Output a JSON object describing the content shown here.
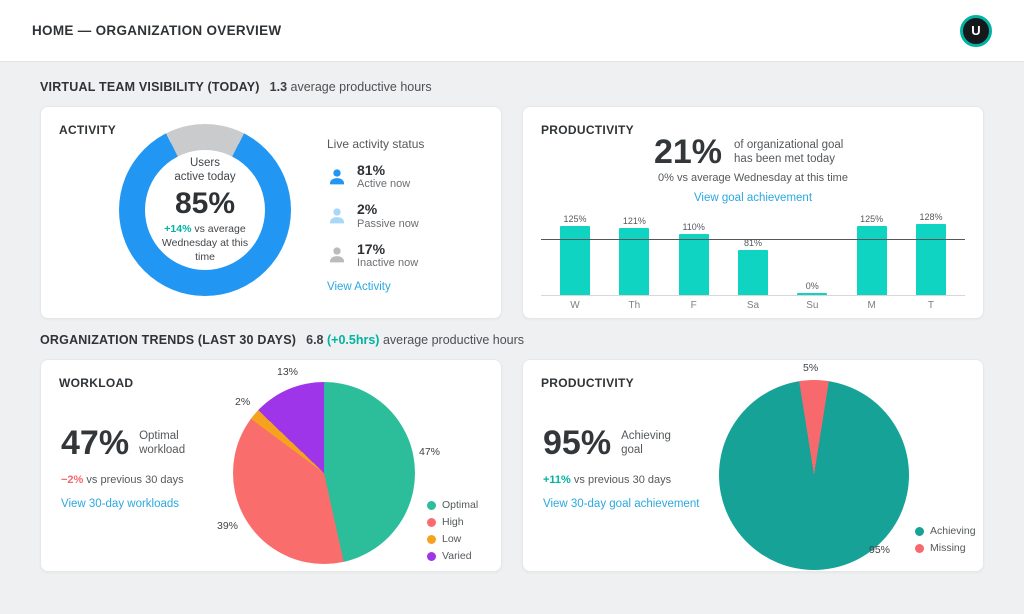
{
  "header": {
    "title": "HOME — ORGANIZATION OVERVIEW",
    "avatar_initial": "U"
  },
  "sections": {
    "today": {
      "title": "VIRTUAL TEAM VISIBILITY (TODAY)",
      "value": "1.3",
      "suffix": "average productive hours"
    },
    "trends": {
      "title": "ORGANIZATION TRENDS (LAST 30 DAYS)",
      "value": "6.8",
      "highlight": "(+0.5hrs)",
      "suffix": "average productive hours"
    }
  },
  "activity_card": {
    "title": "ACTIVITY",
    "center_label_line1": "Users",
    "center_label_line2": "active today",
    "center_value": "85%",
    "center_delta": "+14%",
    "center_delta_suffix": "vs average Wednesday at this time",
    "status_title": "Live activity status",
    "statuses": [
      {
        "value": "81%",
        "label": "Active now",
        "color": "#2196f3"
      },
      {
        "value": "2%",
        "label": "Passive now",
        "color": "#a9d7f8"
      },
      {
        "value": "17%",
        "label": "Inactive now",
        "color": "#b9bcbe"
      }
    ],
    "link": "View Activity"
  },
  "productivity_today_card": {
    "title": "PRODUCTIVITY",
    "value": "21%",
    "value_caption": "of organizational goal has been met today",
    "comparison": "0% vs average Wednesday at this time",
    "link": "View goal achievement"
  },
  "workload_card": {
    "title": "WORKLOAD",
    "value": "47%",
    "value_caption": "Optimal workload",
    "delta": "−2%",
    "delta_suffix": "vs previous 30 days",
    "link": "View 30-day workloads"
  },
  "productivity_trend_card": {
    "title": "PRODUCTIVITY",
    "value": "95%",
    "value_caption": "Achieving goal",
    "delta": "+11%",
    "delta_suffix": "vs previous 30 days",
    "link": "View 30-day goal achievement"
  },
  "chart_data": [
    {
      "id": "activity-donut",
      "type": "pie",
      "variant": "donut",
      "start_angle": 27,
      "center_value": "85%",
      "slices": [
        {
          "name": "Active today",
          "value": 85,
          "label": "85%",
          "color": "#2196f3"
        },
        {
          "name": "Not active",
          "value": 15,
          "label": "15%",
          "color": "#c9cbcd"
        }
      ]
    },
    {
      "id": "daily-goal-achievement",
      "type": "bar",
      "categories": [
        "W",
        "Th",
        "F",
        "Sa",
        "Su",
        "M",
        "T"
      ],
      "values": [
        125,
        121,
        110,
        81,
        0,
        125,
        128
      ],
      "value_labels": [
        "125%",
        "121%",
        "110%",
        "81%",
        "0%",
        "125%",
        "128%"
      ],
      "bar_color": "#0fd4c1",
      "avg_line": 100,
      "ylim": [
        0,
        130
      ]
    },
    {
      "id": "workload-distribution",
      "type": "pie",
      "start_angle": 0,
      "slices": [
        {
          "name": "Optimal",
          "value": 47,
          "label": "47%",
          "color": "#2cbd9b"
        },
        {
          "name": "High",
          "value": 39,
          "label": "39%",
          "color": "#f96d6d"
        },
        {
          "name": "Low",
          "value": 2,
          "label": "2%",
          "color": "#f5a31f"
        },
        {
          "name": "Varied",
          "value": 13,
          "label": "13%",
          "color": "#9f35e8"
        }
      ]
    },
    {
      "id": "goal-achievement-30d",
      "type": "pie",
      "start_angle": 9,
      "slices": [
        {
          "name": "Achieving",
          "value": 95,
          "label": "95%",
          "color": "#16a296"
        },
        {
          "name": "Missing",
          "value": 5,
          "label": "5%",
          "color": "#f7696c"
        }
      ]
    }
  ],
  "colors": {
    "accent_teal": "#00b3a2",
    "negative_red": "#f6696c",
    "link_blue": "#2aa9e0"
  }
}
